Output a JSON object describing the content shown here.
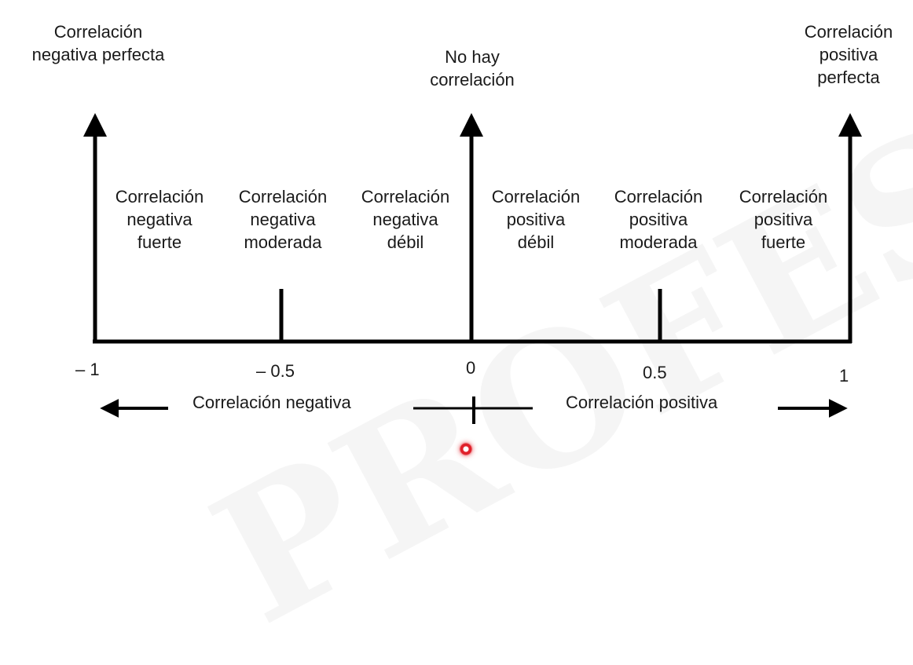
{
  "top_labels": {
    "negative_perfect": "Correlación\nnegativa perfecta",
    "none": "No hay\ncorrelación",
    "positive_perfect": "Correlación\npositiva\nperfecta"
  },
  "region_labels": {
    "neg_strong": "Correlación\nnegativa\nfuerte",
    "neg_moderate": "Correlación\nnegativa\nmoderada",
    "neg_weak": "Correlación\nnegativa\ndébil",
    "pos_weak": "Correlación\npositiva\ndébil",
    "pos_moderate": "Correlación\npositiva\nmoderada",
    "pos_strong": "Correlación\npositiva\nfuerte"
  },
  "ticks": {
    "minus_one": "– 1",
    "minus_half": "– 0.5",
    "zero": "0",
    "half": "0.5",
    "one": "1"
  },
  "direction_labels": {
    "negative": "Correlación negativa",
    "positive": "Correlación positiva"
  },
  "colors": {
    "ink": "#000000",
    "cursor": "#e0202a"
  }
}
